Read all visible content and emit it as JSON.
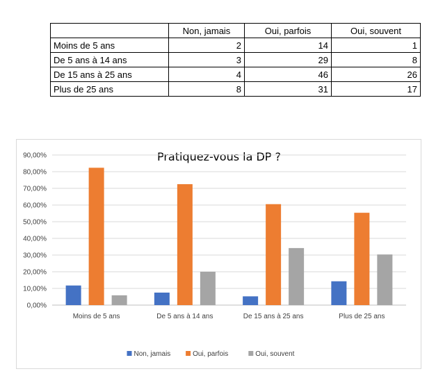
{
  "table": {
    "headers": [
      "",
      "Non, jamais",
      "Oui, parfois",
      "Oui, souvent"
    ],
    "rows": [
      {
        "label": "Moins de 5 ans",
        "values": [
          "2",
          "14",
          "1"
        ]
      },
      {
        "label": "De 5 ans à 14 ans",
        "values": [
          "3",
          "29",
          "8"
        ]
      },
      {
        "label": "De 15 ans à 25 ans",
        "values": [
          "4",
          "46",
          "26"
        ]
      },
      {
        "label": "Plus de 25 ans",
        "values": [
          "8",
          "31",
          "17"
        ]
      }
    ]
  },
  "chart_data": {
    "type": "bar",
    "title": "Pratiquez-vous la DP ?",
    "categories": [
      "Moins de 5 ans",
      "De 5 ans à 14 ans",
      "De 15 ans à 25 ans",
      "Plus de 25 ans"
    ],
    "series": [
      {
        "name": "Non, jamais",
        "color": "#4472c4",
        "values": [
          11.76,
          7.5,
          5.26,
          14.29
        ]
      },
      {
        "name": "Oui, parfois",
        "color": "#ed7d31",
        "values": [
          82.35,
          72.5,
          60.53,
          55.36
        ]
      },
      {
        "name": "Oui, souvent",
        "color": "#a5a5a5",
        "values": [
          5.88,
          20.0,
          34.21,
          30.36
        ]
      }
    ],
    "ylim": [
      0,
      90
    ],
    "yticks": [
      "0,00%",
      "10,00%",
      "20,00%",
      "30,00%",
      "40,00%",
      "50,00%",
      "60,00%",
      "70,00%",
      "80,00%",
      "90,00%"
    ],
    "grid": true,
    "legend": "bottom"
  }
}
